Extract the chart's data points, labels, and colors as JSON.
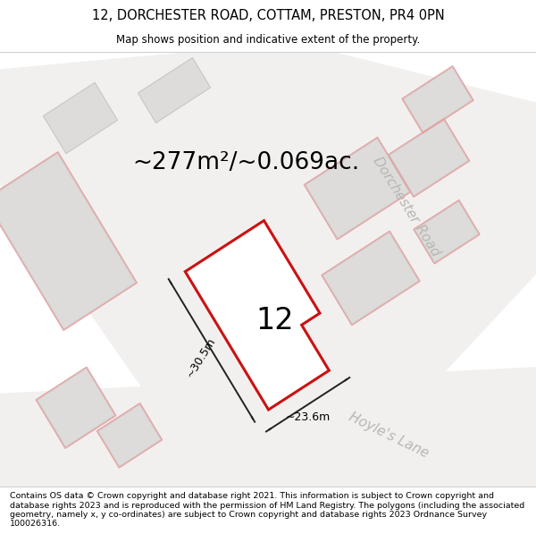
{
  "title": "12, DORCHESTER ROAD, COTTAM, PRESTON, PR4 0PN",
  "subtitle": "Map shows position and indicative extent of the property.",
  "footer": "Contains OS data © Crown copyright and database right 2021. This information is subject to Crown copyright and database rights 2023 and is reproduced with the permission of HM Land Registry. The polygons (including the associated geometry, namely x, y co-ordinates) are subject to Crown copyright and database rights 2023 Ordnance Survey 100026316.",
  "area_label": "~277m²/~0.069ac.",
  "number_label": "12",
  "width_label": "~23.6m",
  "height_label": "~30.5m",
  "bg_color": "#eeeceb",
  "building_fill": "#dddcdb",
  "building_stroke": "#c8c6c5",
  "pink_stroke": "#e8a0a0",
  "red_stroke": "#cc1111",
  "white_fill": "#ffffff",
  "road_label_color": "#b8b6b4",
  "title_fontsize": 10.5,
  "subtitle_fontsize": 8.5,
  "footer_fontsize": 6.8,
  "area_fontsize": 19,
  "number_fontsize": 24,
  "measure_fontsize": 9,
  "road_label_fontsize": 11
}
